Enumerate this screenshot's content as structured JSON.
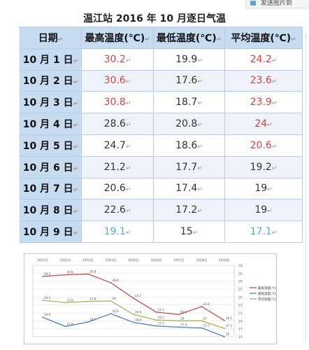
{
  "toolbar": {
    "label": "发送图片到"
  },
  "title": "温江站 2016 年 10 月逐日气温",
  "table": {
    "headers": [
      "日期",
      "最高温度(℃)",
      "最低温度(℃)",
      "平均温度(℃)"
    ],
    "rows": [
      {
        "date": "10 月 1 日",
        "max": "30.2",
        "min": "19.9",
        "avg": "24.2",
        "max_color": "red",
        "min_color": "dark",
        "avg_color": "red"
      },
      {
        "date": "10 月 2 日",
        "max": "30.6",
        "min": "17.6",
        "avg": "23.6",
        "max_color": "red",
        "min_color": "dark",
        "avg_color": "red"
      },
      {
        "date": "10 月 3 日",
        "max": "30.8",
        "min": "18.7",
        "avg": "23.9",
        "max_color": "red",
        "min_color": "dark",
        "avg_color": "red"
      },
      {
        "date": "10 月 4 日",
        "max": "28.6",
        "min": "20.8",
        "avg": "24",
        "max_color": "dark",
        "min_color": "dark",
        "avg_color": "red"
      },
      {
        "date": "10 月 5 日",
        "max": "24.7",
        "min": "18.6",
        "avg": "20.6",
        "max_color": "dark",
        "min_color": "dark",
        "avg_color": "red"
      },
      {
        "date": "10 月 6 日",
        "max": "21.2",
        "min": "17.7",
        "avg": "19.2",
        "max_color": "dark",
        "min_color": "dark",
        "avg_color": "dark"
      },
      {
        "date": "10 月 7 日",
        "max": "20.6",
        "min": "17.4",
        "avg": "19",
        "max_color": "dark",
        "min_color": "dark",
        "avg_color": "dark"
      },
      {
        "date": "10 月 8 日",
        "max": "22.6",
        "min": "17.2",
        "avg": "19",
        "max_color": "dark",
        "min_color": "dark",
        "avg_color": "dark"
      },
      {
        "date": "10 月 9 日",
        "max": "19.1",
        "min": "15",
        "avg": "17.1",
        "max_color": "blue",
        "min_color": "dark",
        "avg_color": "blue"
      }
    ]
  },
  "colors": {
    "red": "#d9413c",
    "dark": "#333333",
    "blue": "#5aa7d9",
    "header_bg": "#c7dbf1"
  },
  "chart_data": {
    "type": "line",
    "categories": [
      "10月1日",
      "10月2日",
      "10月3日",
      "10月4日",
      "10月5日",
      "10月6日",
      "10月7日",
      "10月8日",
      "10月9日"
    ],
    "series": [
      {
        "name": "最高温度(℃)",
        "color": "#c0504d",
        "values": [
          30.2,
          30.6,
          30.8,
          28.6,
          24.7,
          21.2,
          20.6,
          22.6,
          19.1
        ]
      },
      {
        "name": "最低温度(℃)",
        "color": "#4f81bd",
        "values": [
          19.9,
          17.6,
          18.7,
          20.8,
          18.6,
          17.7,
          17.4,
          17.2,
          15
        ]
      },
      {
        "name": "平均温度(℃)",
        "color": "#9bbb59",
        "values": [
          24.2,
          23.6,
          23.9,
          24,
          20.6,
          19.2,
          19,
          19,
          17.1
        ]
      }
    ],
    "yticks": [
      15,
      17,
      19,
      21,
      23,
      25,
      27,
      29,
      31,
      33
    ],
    "ylim": [
      15,
      33
    ],
    "legend": "right",
    "grid": true
  }
}
